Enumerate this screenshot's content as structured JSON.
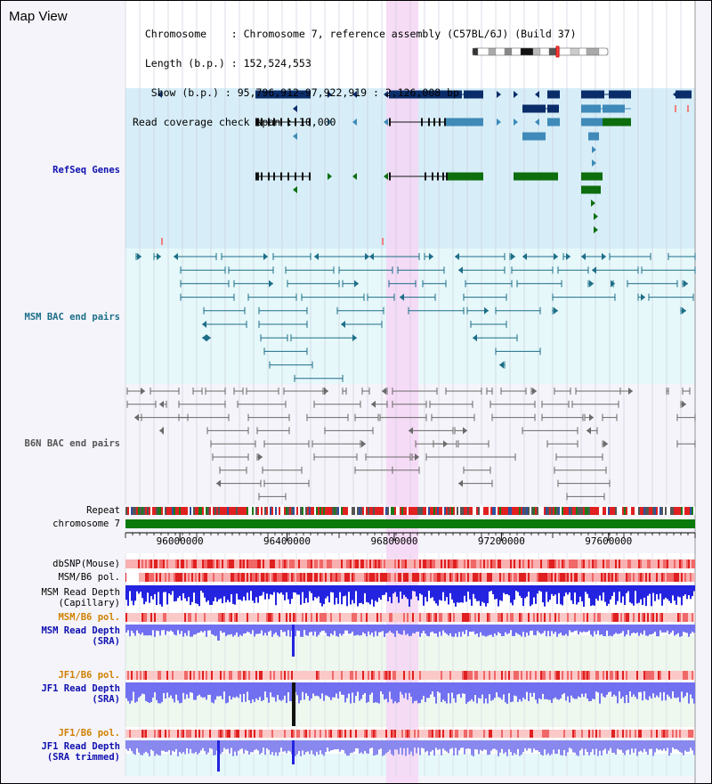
{
  "title": "Map View",
  "info": {
    "lines": [
      "  Chromosome    : Chromosome 7, reference assembly (C57BL/6J) (Build 37)",
      "  Length (b.p.) : 152,524,553",
      "   Show (b.p.) : 95,796,912-97,922,919 : 2,126,008 bp",
      "Read coverage check span : 10,000"
    ]
  },
  "tracks": {
    "refseq": "RefSeq Genes",
    "msm_bac": "MSM BAC end pairs",
    "b6n_bac": "B6N BAC end pairs",
    "repeat": "Repeat",
    "chromosome": "chromosome 7",
    "dbsnp": "dbSNP(Mouse)",
    "msm_b6_pol": "MSM/B6 pol.",
    "msm_read_depth_cap": "MSM Read Depth\n(Capillary)",
    "msm_b6_pol2": "MSM/B6 pol.",
    "msm_read_depth_sra": "MSM Read Depth\n(SRA)",
    "jf1_b6_pol": "JF1/B6 pol.",
    "jf1_read_depth_sra": "JF1 Read Depth\n(SRA)",
    "jf1_b6_pol2": "JF1/B6 pol.",
    "jf1_read_depth_trim": "JF1 Read Depth\n(SRA trimmed)"
  },
  "axis": {
    "start": 95796912,
    "end": 97922919,
    "tick_labels": [
      "96000000",
      "96400000",
      "96800000",
      "97200000",
      "97600000"
    ],
    "tick_values": [
      96000000,
      96400000,
      96800000,
      97200000,
      97600000
    ]
  },
  "highlight": {
    "start": 96770000,
    "end": 96890000
  },
  "colors": {
    "refseq_bg": "#d7eef8",
    "bac_bg": "#e6f8fa",
    "b6n_bg": "#f4f4fa",
    "highlight": "#f6d6f4",
    "gene_dark": "#0a2d6a",
    "gene_mid": "#3f8ab8",
    "gene_green": "#0e6e0e",
    "bac_msm": "#1d6e88",
    "bac_b6n": "#6a6a6a",
    "chrom": "#0a7a0a",
    "depth_blue": "#2323e0",
    "depth_light": "#7070f0",
    "label_blue": "#1010b0",
    "label_orange": "#d08000",
    "label_teal": "#1d6e88"
  }
}
